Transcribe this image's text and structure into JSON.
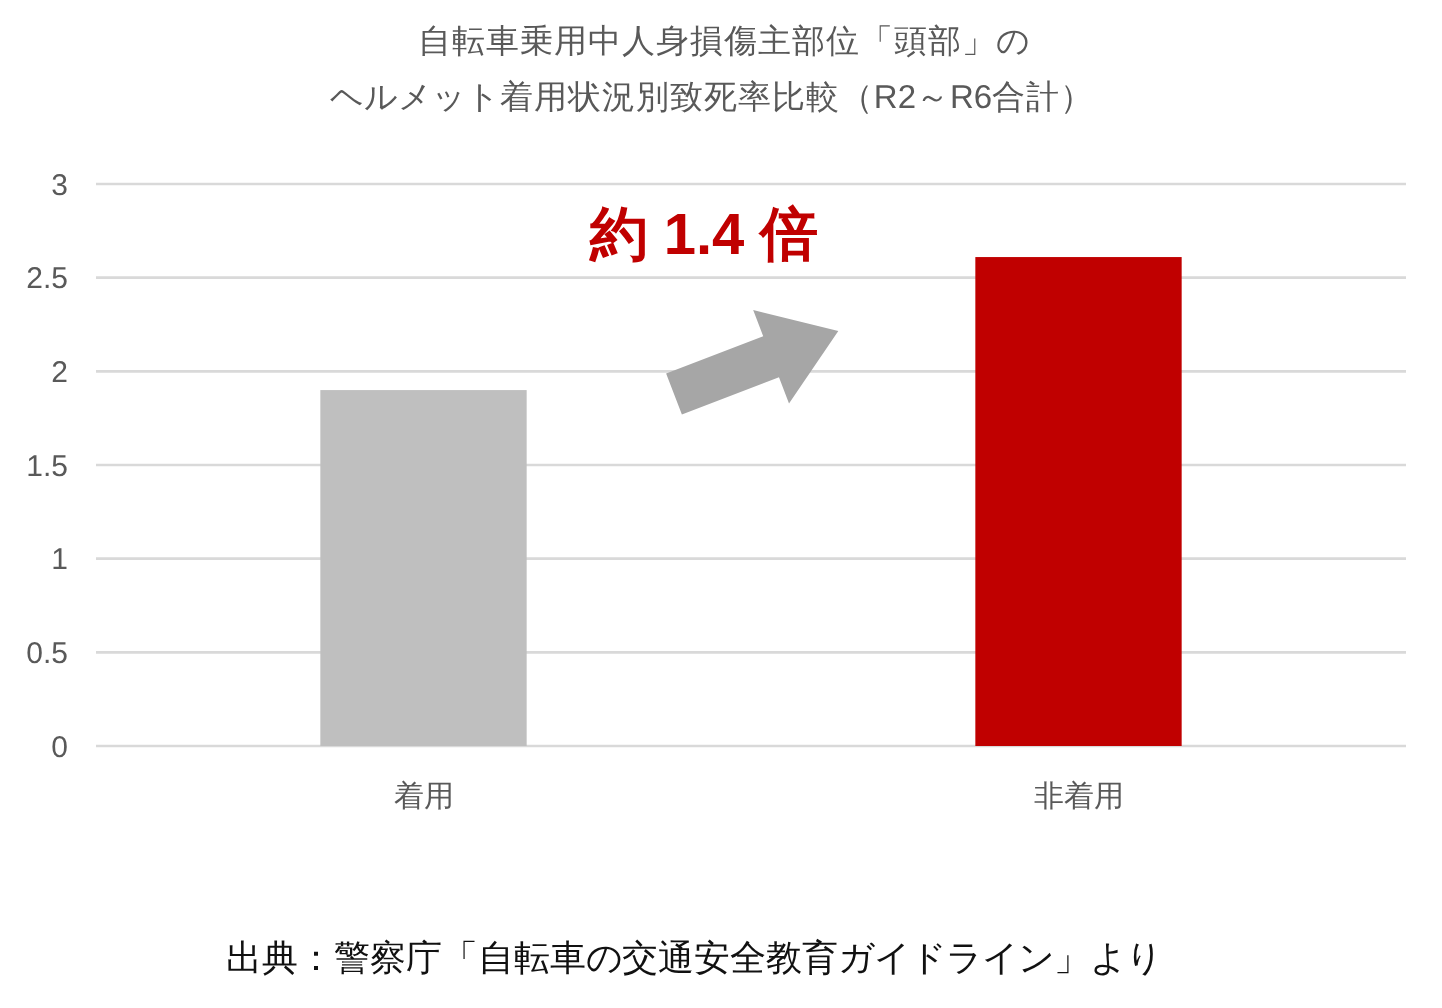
{
  "chart_data": {
    "type": "bar",
    "title": "自転車乗用中人身損傷主部位「頭部」の",
    "subtitle": "ヘルメット着用状況別致死率比較（R2～R6合計）",
    "categories": [
      "着用",
      "非着用"
    ],
    "values": [
      1.9,
      2.61
    ],
    "colors": [
      "#bfbfbf",
      "#c00000"
    ],
    "ylim": [
      0,
      3
    ],
    "yticks": [
      0,
      0.5,
      1,
      1.5,
      2,
      2.5,
      3
    ],
    "grid": "y",
    "annotations": [
      "約 1.4 倍",
      "出典：警察庁「自転車の交通安全教育ガイドライン」より"
    ]
  }
}
